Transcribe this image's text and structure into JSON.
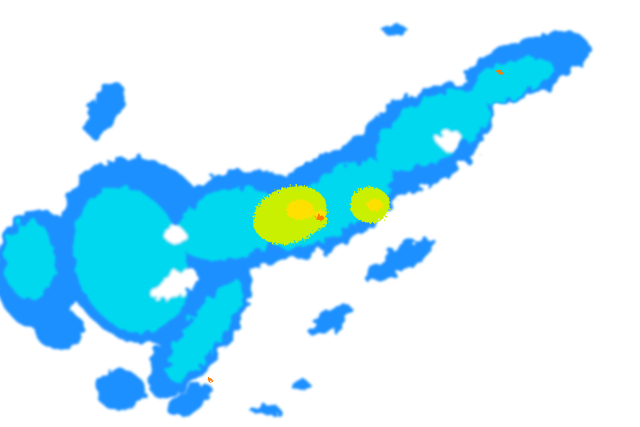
{
  "radar": {
    "background": "#ffffff",
    "palette": {
      "light": "#1e90ff",
      "moderate": "#00d8f0",
      "strong": "#40e0d0",
      "heavy": "#c8f000",
      "intense": "#ffe000",
      "extreme": "#ff7a00"
    }
  }
}
